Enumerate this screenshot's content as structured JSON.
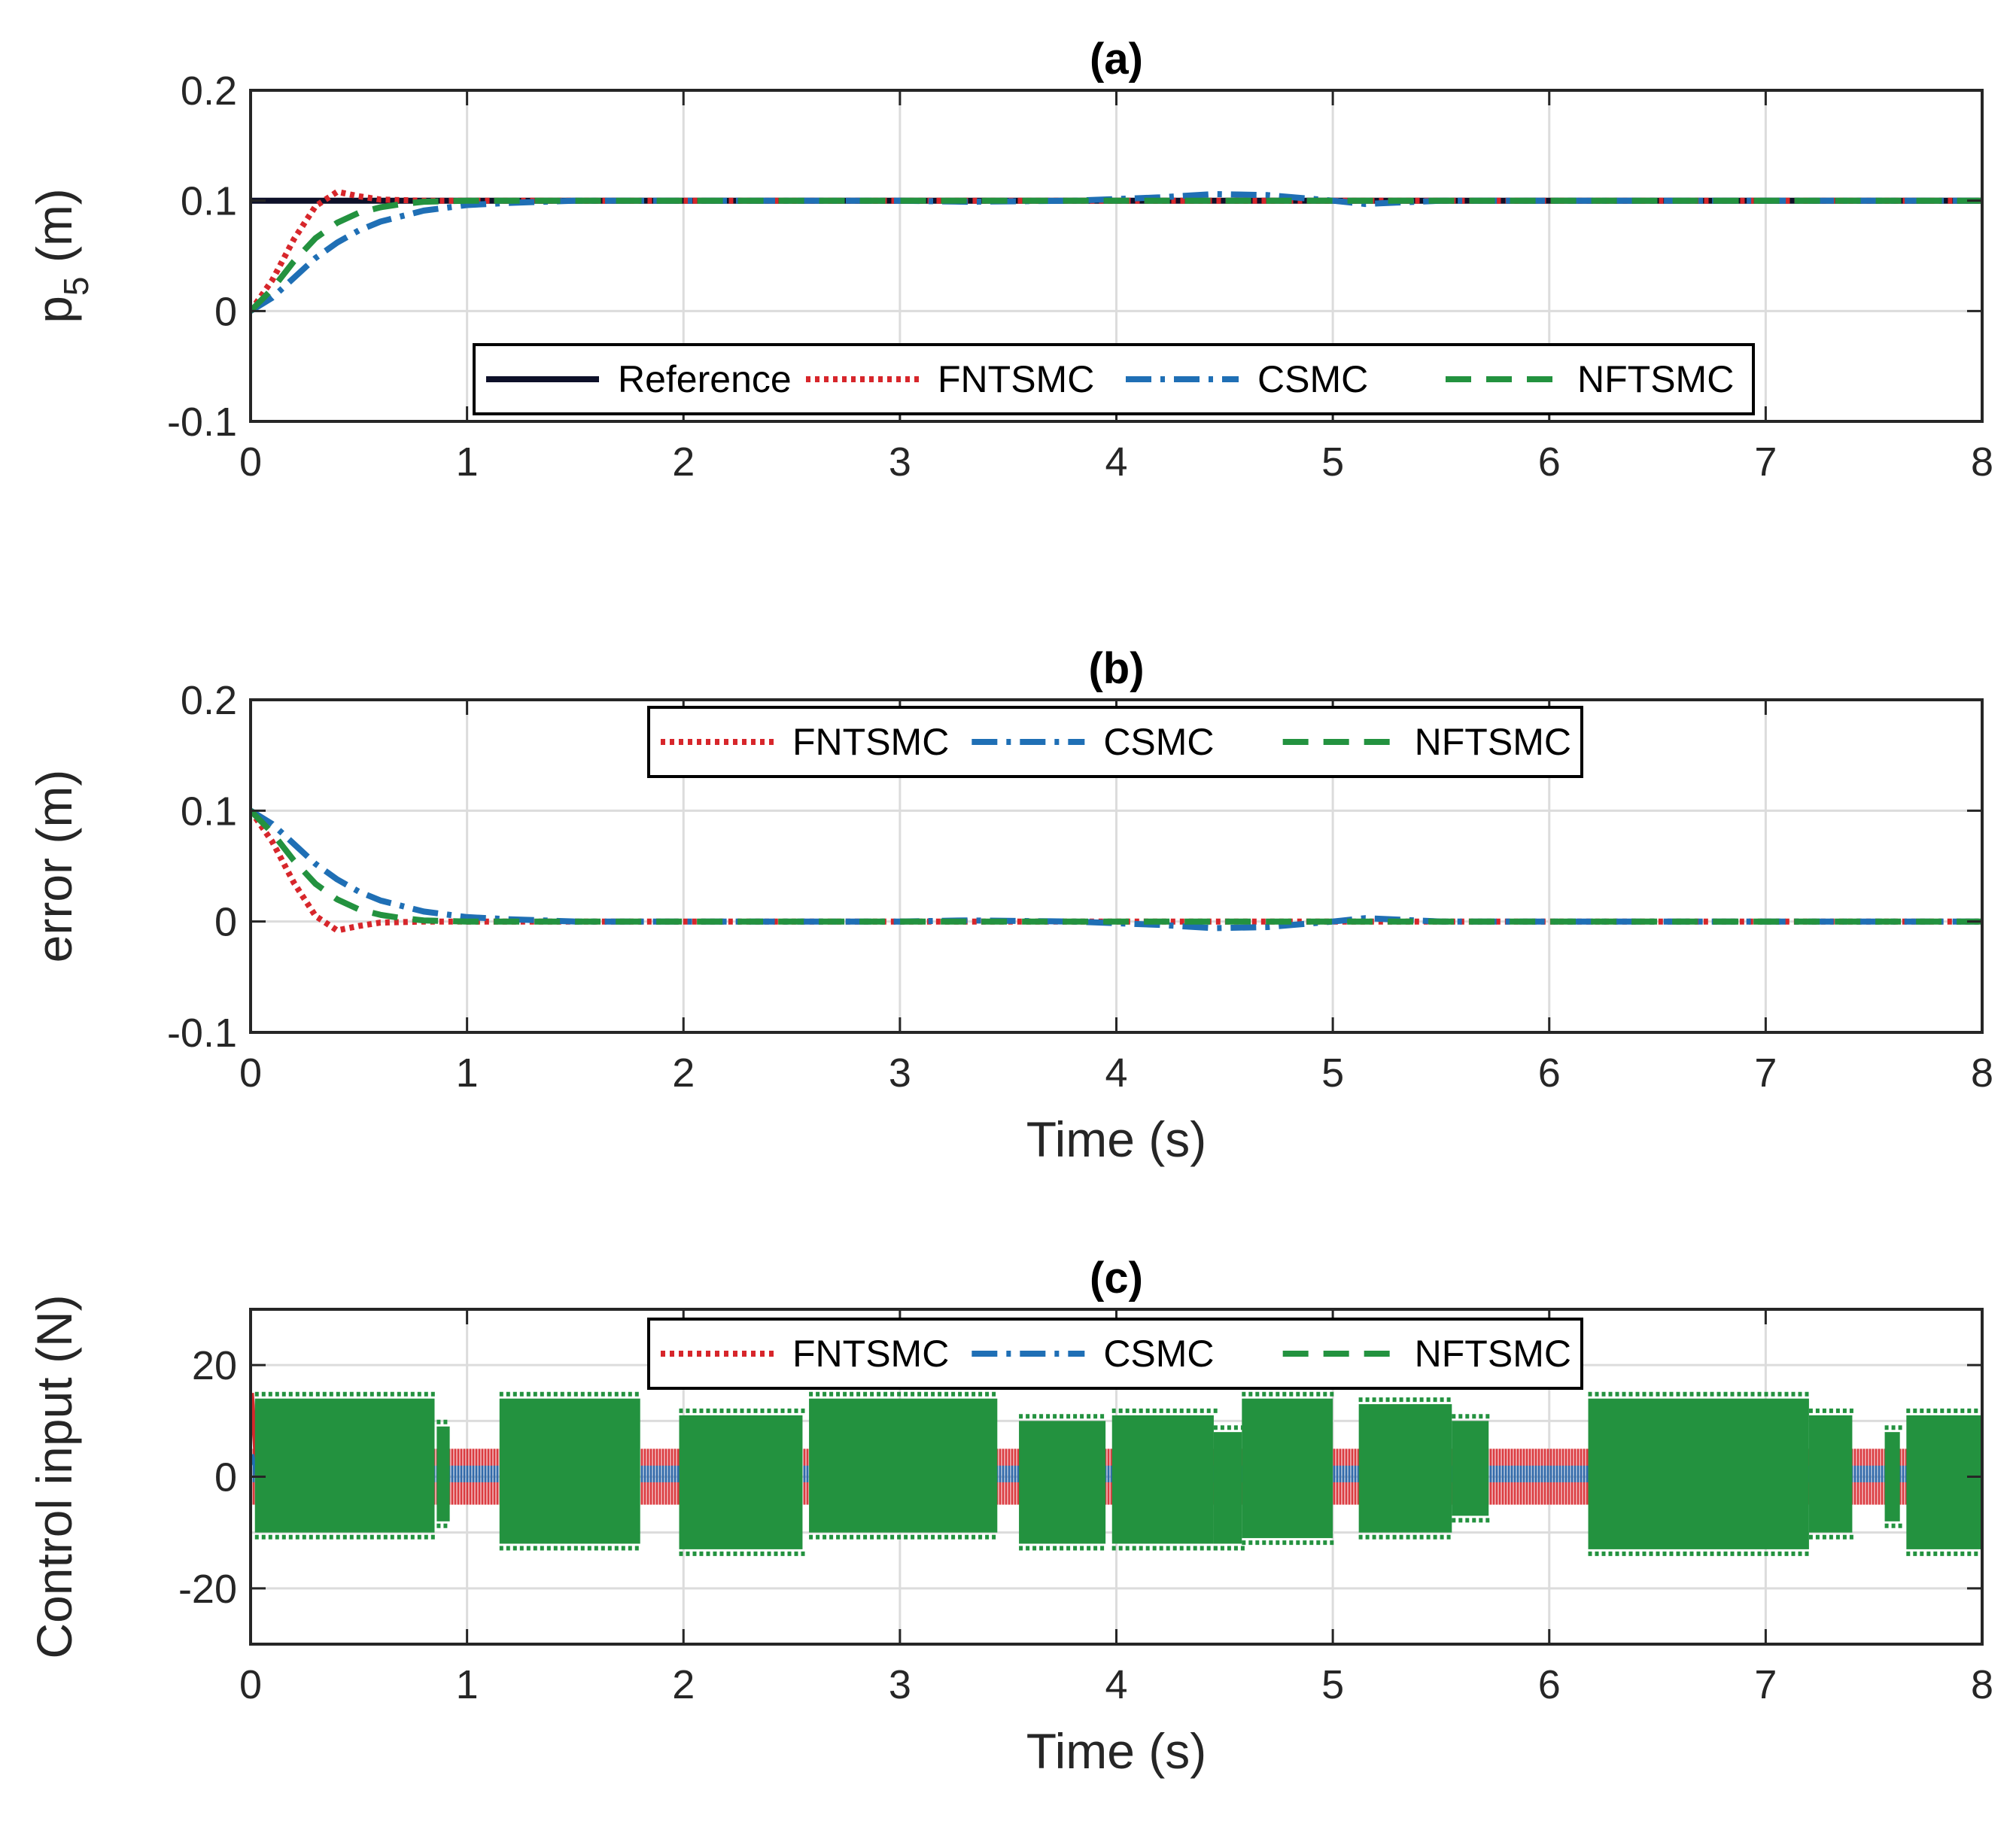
{
  "chart_data": [
    {
      "id": "a",
      "type": "line",
      "title": "(a)",
      "ylabel_main": "p",
      "ylabel_sub": "5",
      "ylabel_unit": " (m)",
      "xlabel": "",
      "xlim": [
        0,
        8
      ],
      "ylim": [
        -0.1,
        0.2
      ],
      "xticks": [
        "0",
        "1",
        "2",
        "3",
        "4",
        "5",
        "6",
        "7",
        "8"
      ],
      "yticks": [
        "-0.1",
        "0",
        "0.1",
        "0.2"
      ],
      "grid": true,
      "legend_position": "bottom-center",
      "series": [
        {
          "name": "Reference",
          "color": "#0d1029",
          "style": "solid",
          "x": [
            0,
            8
          ],
          "y": [
            0.1,
            0.1
          ]
        },
        {
          "name": "FNTSMC",
          "color": "#d7262b",
          "style": "dotted",
          "x": [
            0,
            0.1,
            0.2,
            0.3,
            0.4,
            0.5,
            0.6,
            0.8,
            1.0,
            2,
            3,
            4,
            5,
            6,
            7,
            8
          ],
          "y": [
            0,
            0.028,
            0.065,
            0.095,
            0.108,
            0.104,
            0.101,
            0.1,
            0.1,
            0.1,
            0.1,
            0.1,
            0.1,
            0.1,
            0.1,
            0.1
          ]
        },
        {
          "name": "CSMC",
          "color": "#1f6fb5",
          "style": "dashdot",
          "x": [
            0,
            0.1,
            0.2,
            0.3,
            0.4,
            0.5,
            0.6,
            0.8,
            1.0,
            1.2,
            1.5,
            2.0,
            3.0,
            3.3,
            3.8,
            4.2,
            4.45,
            4.7,
            5.0,
            5.15,
            5.5,
            6,
            7,
            8
          ],
          "y": [
            0,
            0.012,
            0.03,
            0.048,
            0.062,
            0.073,
            0.081,
            0.091,
            0.096,
            0.098,
            0.1,
            0.1,
            0.1,
            0.099,
            0.1,
            0.103,
            0.106,
            0.105,
            0.1,
            0.097,
            0.1,
            0.1,
            0.1,
            0.1
          ]
        },
        {
          "name": "NFTSMC",
          "color": "#23923f",
          "style": "dashed",
          "x": [
            0,
            0.1,
            0.2,
            0.3,
            0.4,
            0.5,
            0.6,
            0.7,
            0.8,
            1.0,
            1.5,
            2,
            3,
            4,
            5,
            6,
            7,
            8
          ],
          "y": [
            0,
            0.02,
            0.045,
            0.066,
            0.08,
            0.089,
            0.094,
            0.097,
            0.099,
            0.1,
            0.1,
            0.1,
            0.1,
            0.1,
            0.1,
            0.1,
            0.1,
            0.1
          ]
        }
      ]
    },
    {
      "id": "b",
      "type": "line",
      "title": "(b)",
      "ylabel": "error (m)",
      "xlabel": "Time (s)",
      "xlim": [
        0,
        8
      ],
      "ylim": [
        -0.1,
        0.2
      ],
      "xticks": [
        "0",
        "1",
        "2",
        "3",
        "4",
        "5",
        "6",
        "7",
        "8"
      ],
      "yticks": [
        "-0.1",
        "0",
        "0.1",
        "0.2"
      ],
      "grid": true,
      "legend_position": "top-center",
      "series": [
        {
          "name": "FNTSMC",
          "color": "#d7262b",
          "style": "dotted",
          "x": [
            0,
            0.1,
            0.2,
            0.3,
            0.4,
            0.5,
            0.6,
            0.8,
            1.0,
            2,
            3,
            4,
            5,
            6,
            7,
            8
          ],
          "y": [
            0.1,
            0.072,
            0.035,
            0.005,
            -0.008,
            -0.004,
            -0.001,
            0,
            0,
            0,
            0,
            0,
            0,
            0,
            0,
            0
          ]
        },
        {
          "name": "CSMC",
          "color": "#1f6fb5",
          "style": "dashdot",
          "x": [
            0,
            0.1,
            0.2,
            0.3,
            0.4,
            0.5,
            0.6,
            0.8,
            1.0,
            1.2,
            1.5,
            2.0,
            3.0,
            3.3,
            3.8,
            4.2,
            4.45,
            4.7,
            5.0,
            5.15,
            5.5,
            6,
            7,
            8
          ],
          "y": [
            0.1,
            0.088,
            0.07,
            0.052,
            0.038,
            0.027,
            0.019,
            0.009,
            0.004,
            0.002,
            0,
            0,
            0,
            0.001,
            0,
            -0.003,
            -0.006,
            -0.005,
            0,
            0.003,
            0,
            0,
            0,
            0
          ]
        },
        {
          "name": "NFTSMC",
          "color": "#23923f",
          "style": "dashed",
          "x": [
            0,
            0.1,
            0.2,
            0.3,
            0.4,
            0.5,
            0.6,
            0.7,
            0.8,
            1.0,
            1.5,
            2,
            3,
            4,
            5,
            6,
            7,
            8
          ],
          "y": [
            0.1,
            0.08,
            0.055,
            0.034,
            0.02,
            0.011,
            0.006,
            0.003,
            0.001,
            0,
            0,
            0,
            0,
            0,
            0,
            0,
            0,
            0
          ]
        }
      ]
    },
    {
      "id": "c",
      "type": "line",
      "title": "(c)",
      "ylabel": "Control input (N)",
      "xlabel": "Time (s)",
      "xlim": [
        0,
        8
      ],
      "ylim": [
        -30,
        30
      ],
      "xticks": [
        "0",
        "1",
        "2",
        "3",
        "4",
        "5",
        "6",
        "7",
        "8"
      ],
      "yticks": [
        "-20",
        "0",
        "20"
      ],
      "yticks_values": [
        -20,
        0,
        20
      ],
      "grid": true,
      "legend_position": "top-center",
      "series": [
        {
          "name": "FNTSMC",
          "color": "#d7262b",
          "style": "dotted",
          "band_x": [
            0.0,
            8.0
          ],
          "band_low": -5,
          "band_high": 5,
          "start_value": 15
        },
        {
          "name": "CSMC",
          "color": "#1f6fb5",
          "style": "dashdot",
          "band_x": [
            0.0,
            8.0
          ],
          "band_low": -1,
          "band_high": 2,
          "start_value": 4
        },
        {
          "name": "NFTSMC",
          "color": "#23923f",
          "style": "dashed",
          "blocks": [
            [
              0.02,
              0.85,
              -10,
              14
            ],
            [
              0.86,
              0.92,
              -8,
              9
            ],
            [
              1.15,
              1.8,
              -12,
              14
            ],
            [
              1.98,
              2.55,
              -13,
              11
            ],
            [
              2.58,
              3.45,
              -10,
              14
            ],
            [
              3.55,
              3.95,
              -12,
              10
            ],
            [
              3.98,
              4.45,
              -12,
              11
            ],
            [
              4.45,
              4.58,
              -12,
              8
            ],
            [
              4.58,
              5.0,
              -11,
              14
            ],
            [
              5.12,
              5.55,
              -10,
              13
            ],
            [
              5.55,
              5.72,
              -7,
              10
            ],
            [
              6.18,
              7.2,
              -13,
              14
            ],
            [
              7.2,
              7.4,
              -10,
              11
            ],
            [
              7.55,
              7.62,
              -8,
              8
            ],
            [
              7.65,
              8.0,
              -13,
              11
            ]
          ]
        }
      ]
    }
  ]
}
